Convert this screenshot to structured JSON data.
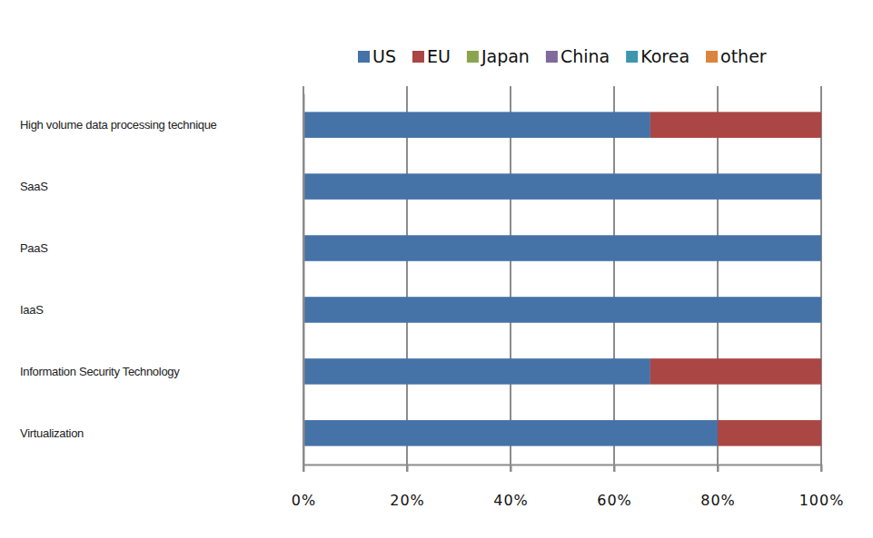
{
  "chart_data": {
    "type": "bar",
    "orientation": "horizontal",
    "stacked": true,
    "grid": true,
    "legend": "top",
    "categories": [
      "High volume data processing technique",
      "SaaS",
      "PaaS",
      "IaaS",
      "Information Security Technology",
      "Virtualization"
    ],
    "series": [
      {
        "name": "US",
        "color": "#4572A7",
        "values": [
          67,
          100,
          100,
          100,
          67,
          80
        ]
      },
      {
        "name": "EU",
        "color": "#AA4643",
        "values": [
          33,
          0,
          0,
          0,
          33,
          20
        ]
      },
      {
        "name": "Japan",
        "color": "#89A54E",
        "values": [
          0,
          0,
          0,
          0,
          0,
          0
        ]
      },
      {
        "name": "China",
        "color": "#80699B",
        "values": [
          0,
          0,
          0,
          0,
          0,
          0
        ]
      },
      {
        "name": "Korea",
        "color": "#3D96AE",
        "values": [
          0,
          0,
          0,
          0,
          0,
          0
        ]
      },
      {
        "name": "other",
        "color": "#DB843D",
        "values": [
          0,
          0,
          0,
          0,
          0,
          0
        ]
      }
    ],
    "xlim": [
      0,
      100
    ],
    "xticks": [
      {
        "value": 0,
        "label": "0%"
      },
      {
        "value": 20,
        "label": "20%"
      },
      {
        "value": 40,
        "label": "40%"
      },
      {
        "value": 60,
        "label": "60%"
      },
      {
        "value": 80,
        "label": "80%"
      },
      {
        "value": 100,
        "label": "100%"
      }
    ]
  }
}
